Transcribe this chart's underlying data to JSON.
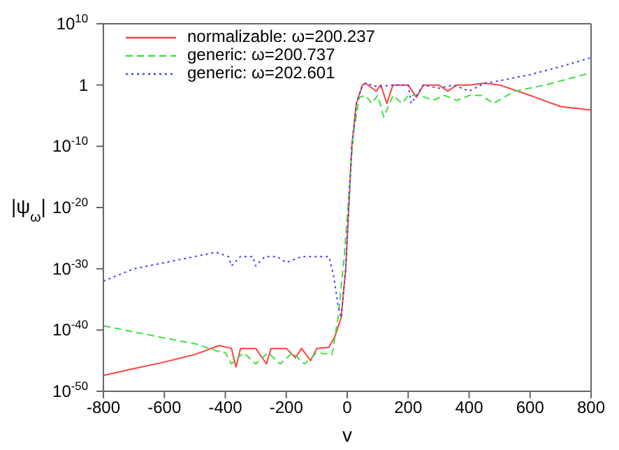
{
  "chart_data": {
    "type": "line",
    "xlabel": "v",
    "ylabel": "|ψ$_{ω}$|",
    "log": "y",
    "legend": "top left",
    "grid": false,
    "marker": "none",
    "xlim": [
      -800,
      800
    ],
    "xticks": [
      -800,
      -600,
      -400,
      -200,
      0,
      200,
      400,
      600,
      800
    ],
    "ylim": [
      1e-50,
      10000000000.0
    ],
    "yticks": [
      {
        "value": 1e-50,
        "label": "10$^{-50}$"
      },
      {
        "value": 1e-40,
        "label": "10$^{-40}$"
      },
      {
        "value": 1e-30,
        "label": "10$^{-30}$"
      },
      {
        "value": 1e-20,
        "label": "10$^{-20}$"
      },
      {
        "value": 1e-10,
        "label": "10$^{-10}$"
      },
      1,
      {
        "value": 10000000000.0,
        "label": "10$^{10}$"
      }
    ],
    "series": [
      {
        "name": "normalizable: ω=200.237",
        "color": "#ff4040",
        "line_style": "solid",
        "x": [
          -800,
          -700,
          -600,
          -500,
          -420,
          -380,
          -365,
          -350,
          -300,
          -265,
          -250,
          -200,
          -170,
          -150,
          -120,
          -100,
          -60,
          -40,
          -20,
          -5,
          5,
          15,
          30,
          50,
          60,
          95,
          110,
          130,
          150,
          200,
          227,
          250,
          300,
          330,
          360,
          400,
          450,
          500,
          600,
          700,
          800
        ],
        "values": [
          4e-48,
          5e-47,
          6e-46,
          1e-44,
          3e-43,
          1e-43,
          1e-46,
          1e-43,
          1e-43,
          3e-46,
          1e-43,
          1e-43,
          3e-45,
          1e-43,
          1e-45,
          1e-43,
          1.5e-43,
          1e-41,
          1e-38,
          1e-30,
          1e-20,
          1e-10,
          0.001,
          1,
          2,
          0.1,
          1,
          0.001,
          1,
          1,
          0.01,
          1,
          1,
          0.1,
          1,
          1,
          2,
          1,
          0.02,
          0.0003,
          8e-05
        ]
      },
      {
        "name": "generic: ω=200.737",
        "color": "#40e040",
        "line_style": "dashed",
        "x": [
          -800,
          -700,
          -600,
          -500,
          -420,
          -400,
          -380,
          -340,
          -300,
          -260,
          -220,
          -180,
          -140,
          -100,
          -50,
          -30,
          -10,
          5,
          20,
          40,
          60,
          80,
          100,
          120,
          150,
          180,
          200,
          240,
          280,
          320,
          360,
          400,
          440,
          480,
          550,
          650,
          800
        ],
        "values": [
          5e-40,
          5e-41,
          5e-42,
          6e-43,
          3e-44,
          2e-44,
          3e-46,
          2e-44,
          3e-46,
          2e-44,
          3e-46,
          2e-44,
          3e-46,
          2e-44,
          1e-44,
          1e-38,
          1e-28,
          1e-18,
          1e-08,
          0.01,
          0.02,
          0.001,
          0.02,
          6e-06,
          0.02,
          0.001,
          0.02,
          0.02,
          0.003,
          0.02,
          0.003,
          0.02,
          0.02,
          0.001,
          0.1,
          1,
          100
        ]
      },
      {
        "name": "generic: ω=202.601",
        "color": "#4040ff",
        "line_style": "dotted",
        "x": [
          -800,
          -700,
          -600,
          -500,
          -430,
          -390,
          -380,
          -350,
          -310,
          -300,
          -270,
          -230,
          -200,
          -150,
          -100,
          -60,
          -45,
          -30,
          -20,
          -5,
          5,
          15,
          30,
          50,
          60,
          100,
          150,
          200,
          210,
          250,
          300,
          350,
          400,
          450,
          500,
          600,
          700,
          800
        ],
        "values": [
          1e-32,
          1e-30,
          1e-29,
          1e-28,
          5e-28,
          1e-28,
          3e-30,
          1e-28,
          1e-28,
          3e-30,
          1e-28,
          1e-28,
          1e-29,
          1e-28,
          1e-28,
          1e-28,
          1e-31,
          1e-36,
          1e-38,
          1e-30,
          1e-20,
          1e-10,
          0.001,
          1,
          2,
          0.5,
          1,
          1,
          0.001,
          1,
          0.3,
          1,
          0.1,
          2,
          5,
          50,
          1000,
          30000
        ]
      }
    ]
  }
}
